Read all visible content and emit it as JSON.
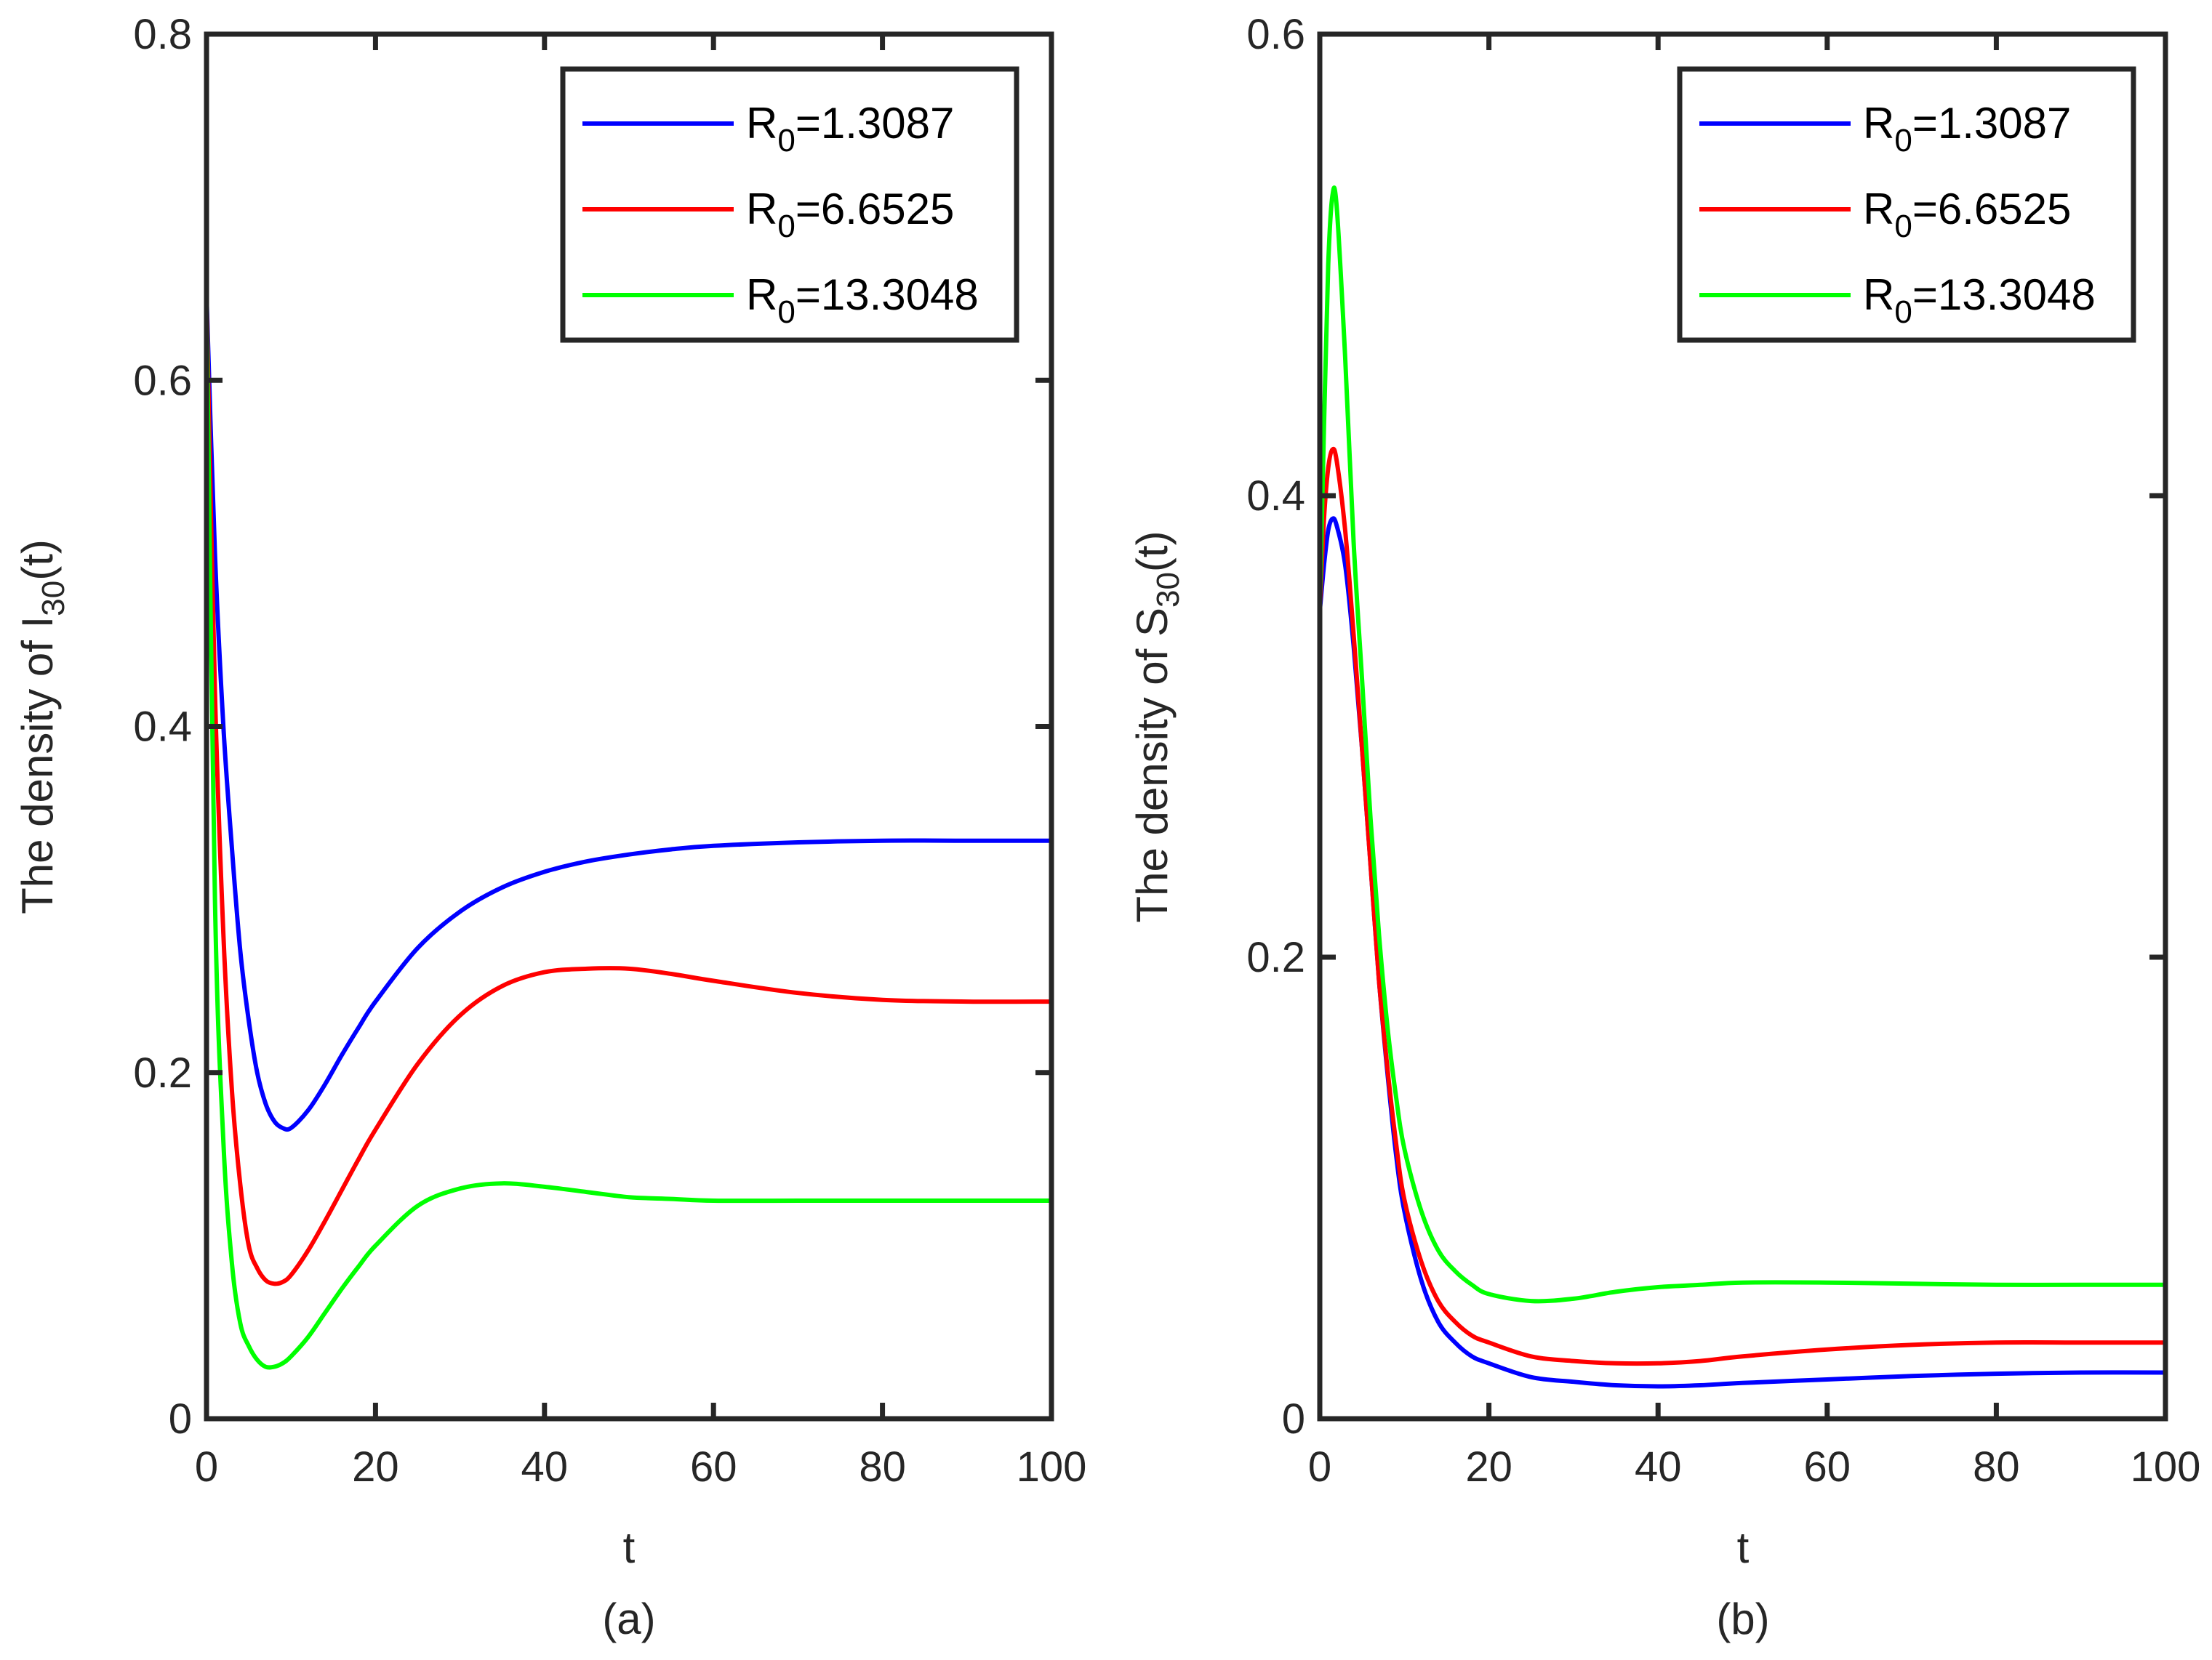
{
  "figure_caption_a": "(a)",
  "figure_caption_b": "(b)",
  "chart_data": [
    {
      "type": "line",
      "panel": "(a)",
      "xlabel": "t",
      "ylabel_main": "The density of I",
      "ylabel_sub": "30",
      "ylabel_tail": "(t)",
      "xlim": [
        0,
        100
      ],
      "ylim": [
        0,
        0.8
      ],
      "xticks": [
        0,
        20,
        40,
        60,
        80,
        100
      ],
      "xtick_labels": [
        "0",
        "20",
        "40",
        "60",
        "80",
        "100"
      ],
      "yticks": [
        0,
        0.2,
        0.4,
        0.6,
        0.8
      ],
      "ytick_labels": [
        "0",
        "0.2",
        "0.4",
        "0.6",
        "0.8"
      ],
      "legend_position": "top-right",
      "series": [
        {
          "name": "R0=1.3087",
          "label_main": "R",
          "label_sub": "0",
          "label_tail": "=1.3087",
          "color": "#0000ff",
          "x": [
            0,
            1,
            2,
            3,
            4,
            5,
            6,
            7,
            8,
            9,
            10,
            12,
            14,
            16,
            18,
            20,
            25,
            30,
            35,
            40,
            45,
            50,
            55,
            60,
            70,
            80,
            90,
            100
          ],
          "y": [
            0.65,
            0.5,
            0.4,
            0.33,
            0.27,
            0.23,
            0.2,
            0.182,
            0.172,
            0.168,
            0.168,
            0.178,
            0.193,
            0.21,
            0.226,
            0.241,
            0.272,
            0.293,
            0.307,
            0.316,
            0.322,
            0.326,
            0.329,
            0.331,
            0.333,
            0.334,
            0.334,
            0.334
          ]
        },
        {
          "name": "R0=6.6525",
          "label_main": "R",
          "label_sub": "0",
          "label_tail": "=6.6525",
          "color": "#ff0000",
          "x": [
            0,
            1,
            2,
            3,
            4,
            5,
            6,
            7,
            8,
            9,
            10,
            12,
            14,
            16,
            18,
            20,
            25,
            30,
            35,
            40,
            45,
            50,
            55,
            60,
            70,
            80,
            90,
            100
          ],
          "y": [
            0.65,
            0.42,
            0.28,
            0.19,
            0.135,
            0.1,
            0.087,
            0.08,
            0.078,
            0.079,
            0.083,
            0.097,
            0.114,
            0.132,
            0.15,
            0.167,
            0.205,
            0.233,
            0.25,
            0.258,
            0.26,
            0.26,
            0.257,
            0.253,
            0.246,
            0.242,
            0.241,
            0.241
          ]
        },
        {
          "name": "R0=13.3048",
          "label_main": "R",
          "label_sub": "0",
          "label_tail": "=13.3048",
          "color": "#00ff00",
          "x": [
            0,
            1,
            2,
            3,
            4,
            5,
            6,
            7,
            8,
            9,
            10,
            12,
            14,
            16,
            18,
            20,
            25,
            30,
            35,
            40,
            45,
            50,
            55,
            60,
            70,
            80,
            90,
            100
          ],
          "y": [
            0.65,
            0.3,
            0.16,
            0.09,
            0.055,
            0.042,
            0.034,
            0.03,
            0.03,
            0.032,
            0.036,
            0.047,
            0.061,
            0.075,
            0.088,
            0.1,
            0.123,
            0.133,
            0.136,
            0.134,
            0.131,
            0.128,
            0.127,
            0.126,
            0.126,
            0.126,
            0.126,
            0.126
          ]
        }
      ]
    },
    {
      "type": "line",
      "panel": "(b)",
      "xlabel": "t",
      "ylabel_main": "The density of S",
      "ylabel_sub": "30",
      "ylabel_tail": "(t)",
      "xlim": [
        0,
        100
      ],
      "ylim": [
        0,
        0.6
      ],
      "xticks": [
        0,
        20,
        40,
        60,
        80,
        100
      ],
      "xtick_labels": [
        "0",
        "20",
        "40",
        "60",
        "80",
        "100"
      ],
      "yticks": [
        0,
        0.2,
        0.4,
        0.6
      ],
      "ytick_labels": [
        "0",
        "0.2",
        "0.4",
        "0.6"
      ],
      "legend_position": "top-right",
      "series": [
        {
          "name": "R0=1.3087",
          "label_main": "R",
          "label_sub": "0",
          "label_tail": "=1.3087",
          "color": "#0000ff",
          "x": [
            0,
            0.5,
            1,
            1.5,
            2,
            3,
            4,
            5,
            6,
            7,
            8,
            9,
            10,
            12,
            14,
            16,
            18,
            20,
            25,
            30,
            35,
            40,
            45,
            50,
            60,
            70,
            80,
            90,
            100
          ],
          "y": [
            0.35,
            0.37,
            0.385,
            0.39,
            0.387,
            0.37,
            0.335,
            0.29,
            0.24,
            0.19,
            0.15,
            0.115,
            0.09,
            0.06,
            0.042,
            0.033,
            0.027,
            0.024,
            0.018,
            0.016,
            0.0145,
            0.014,
            0.0145,
            0.0155,
            0.017,
            0.0185,
            0.0195,
            0.02,
            0.02
          ]
        },
        {
          "name": "R0=6.6525",
          "label_main": "R",
          "label_sub": "0",
          "label_tail": "=6.6525",
          "color": "#ff0000",
          "x": [
            0,
            0.5,
            1,
            1.5,
            2,
            3,
            4,
            5,
            6,
            7,
            8,
            9,
            10,
            12,
            14,
            16,
            18,
            20,
            25,
            30,
            35,
            40,
            45,
            50,
            60,
            70,
            80,
            90,
            100
          ],
          "y": [
            0.35,
            0.39,
            0.412,
            0.42,
            0.415,
            0.385,
            0.34,
            0.29,
            0.24,
            0.19,
            0.152,
            0.12,
            0.095,
            0.068,
            0.051,
            0.042,
            0.036,
            0.033,
            0.027,
            0.025,
            0.024,
            0.024,
            0.025,
            0.027,
            0.03,
            0.032,
            0.033,
            0.033,
            0.033
          ]
        },
        {
          "name": "R0=13.3048",
          "label_main": "R",
          "label_sub": "0",
          "label_tail": "=13.3048",
          "color": "#00ff00",
          "x": [
            0,
            0.5,
            1,
            1.5,
            2,
            3,
            4,
            5,
            6,
            7,
            8,
            9,
            10,
            12,
            14,
            16,
            18,
            20,
            25,
            30,
            35,
            40,
            45,
            50,
            60,
            70,
            80,
            90,
            100
          ],
          "y": [
            0.35,
            0.43,
            0.5,
            0.53,
            0.525,
            0.46,
            0.38,
            0.32,
            0.26,
            0.21,
            0.17,
            0.14,
            0.117,
            0.09,
            0.073,
            0.064,
            0.058,
            0.054,
            0.051,
            0.052,
            0.055,
            0.057,
            0.058,
            0.059,
            0.059,
            0.0585,
            0.058,
            0.058,
            0.058
          ]
        }
      ]
    }
  ]
}
